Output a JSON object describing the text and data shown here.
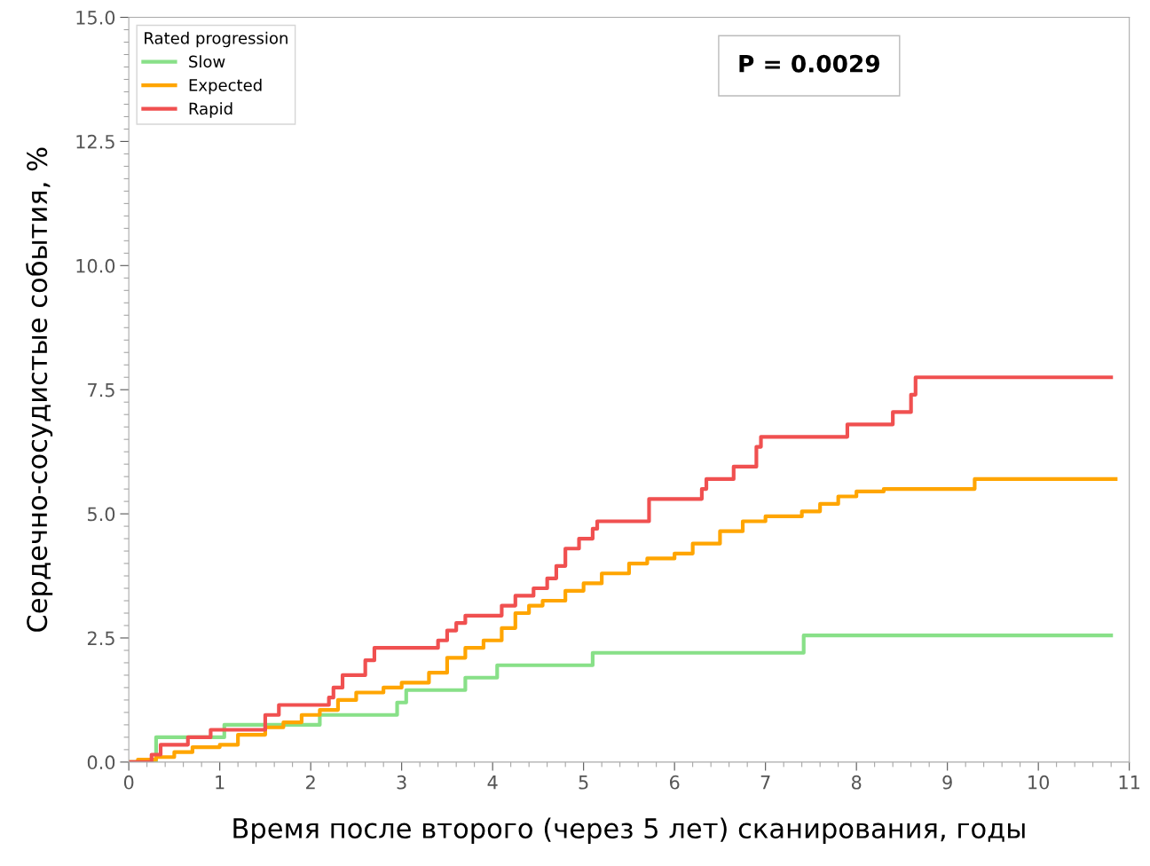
{
  "chart_data": {
    "type": "step",
    "xlabel": "Время после второго (через 5 лет) сканирования, годы",
    "ylabel": "Сердечно-сосудистые события, %",
    "legend_title": "Rated progression",
    "legend": "top left",
    "grid": false,
    "marker": "none",
    "line_style": "solid",
    "xlim": [
      0,
      11
    ],
    "xticks": [
      0,
      1,
      2,
      3,
      4,
      5,
      6,
      7,
      8,
      9,
      10,
      11
    ],
    "ylim": [
      0,
      15
    ],
    "yticks": [
      {
        "value": 0,
        "label": "0.0"
      },
      {
        "value": 2.5,
        "label": "2.5"
      },
      {
        "value": 5,
        "label": "5.0"
      },
      {
        "value": 7.5,
        "label": "7.5"
      },
      {
        "value": 10,
        "label": "10.0"
      },
      {
        "value": 12.5,
        "label": "12.5"
      },
      {
        "value": 15,
        "label": "15.0"
      }
    ],
    "annotations": [
      "P = 0.0029"
    ],
    "series": [
      {
        "name": "Slow",
        "color": "#88e088",
        "x": [
          0,
          0.3,
          1.05,
          2.1,
          2.95,
          3.05,
          3.7,
          4.05,
          5.1,
          7.42,
          10.8
        ],
        "values": [
          0,
          0.5,
          0.75,
          0.95,
          1.2,
          1.45,
          1.7,
          1.95,
          2.2,
          2.55,
          2.55
        ]
      },
      {
        "name": "Expected",
        "color": "#ffa500",
        "x": [
          0,
          0.1,
          0.3,
          0.5,
          0.7,
          1.0,
          1.2,
          1.5,
          1.7,
          1.9,
          2.1,
          2.3,
          2.5,
          2.8,
          3.0,
          3.3,
          3.5,
          3.7,
          3.9,
          4.1,
          4.25,
          4.4,
          4.55,
          4.8,
          5.0,
          5.2,
          5.5,
          5.7,
          6.0,
          6.2,
          6.5,
          6.75,
          7.0,
          7.4,
          7.6,
          7.8,
          8.0,
          8.3,
          9.3,
          10.85
        ],
        "values": [
          0,
          0.05,
          0.1,
          0.2,
          0.3,
          0.35,
          0.55,
          0.7,
          0.8,
          0.95,
          1.05,
          1.25,
          1.4,
          1.5,
          1.6,
          1.8,
          2.1,
          2.3,
          2.45,
          2.7,
          3.0,
          3.15,
          3.25,
          3.45,
          3.6,
          3.8,
          4.0,
          4.1,
          4.2,
          4.4,
          4.65,
          4.85,
          4.95,
          5.05,
          5.2,
          5.35,
          5.45,
          5.5,
          5.7,
          5.7
        ]
      },
      {
        "name": "Rapid",
        "color": "#f05050",
        "x": [
          0,
          0.25,
          0.35,
          0.65,
          0.9,
          1.5,
          1.65,
          2.2,
          2.25,
          2.35,
          2.6,
          2.7,
          3.4,
          3.5,
          3.6,
          3.7,
          4.1,
          4.25,
          4.45,
          4.6,
          4.7,
          4.8,
          4.95,
          5.1,
          5.15,
          5.72,
          6.3,
          6.35,
          6.65,
          6.9,
          6.95,
          7.9,
          8.4,
          8.6,
          8.65,
          10.8
        ],
        "values": [
          0,
          0.15,
          0.35,
          0.5,
          0.65,
          0.95,
          1.15,
          1.3,
          1.5,
          1.75,
          2.05,
          2.3,
          2.45,
          2.65,
          2.8,
          2.95,
          3.15,
          3.35,
          3.5,
          3.7,
          3.95,
          4.3,
          4.5,
          4.7,
          4.85,
          5.3,
          5.5,
          5.7,
          5.95,
          6.35,
          6.55,
          6.8,
          7.05,
          7.4,
          7.75,
          7.75
        ]
      }
    ]
  }
}
